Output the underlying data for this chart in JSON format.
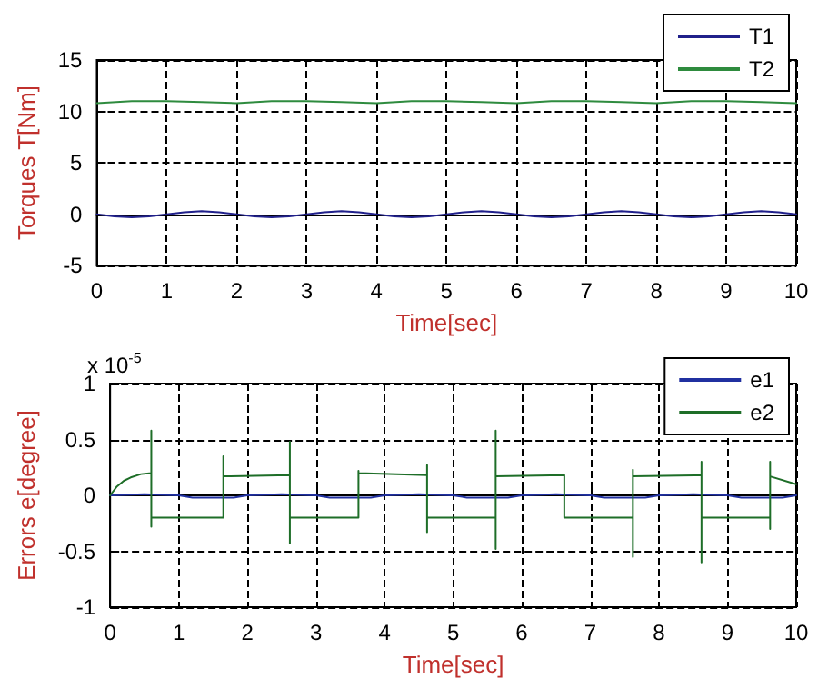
{
  "chart_data": [
    {
      "type": "line",
      "xlabel": "Time[sec]",
      "ylabel": "Torques T[Nm]",
      "xlim": [
        0,
        10
      ],
      "ylim": [
        -5,
        15
      ],
      "xticks": [
        0,
        1,
        2,
        3,
        4,
        5,
        6,
        7,
        8,
        9,
        10
      ],
      "yticks": [
        -5,
        0,
        5,
        10,
        15
      ],
      "grid": true,
      "legend": "top right",
      "marker": "none",
      "line_style": "solid",
      "series": [
        {
          "name": "T1",
          "color": "#20208a",
          "x": [
            0,
            0.25,
            0.5,
            0.75,
            1,
            1.25,
            1.5,
            1.75,
            2,
            2.25,
            2.5,
            2.75,
            3,
            3.25,
            3.5,
            3.75,
            4,
            4.25,
            4.5,
            4.75,
            5,
            5.25,
            5.5,
            5.75,
            6,
            6.25,
            6.5,
            6.75,
            7,
            7.25,
            7.5,
            7.75,
            8,
            8.25,
            8.5,
            8.75,
            9,
            9.25,
            9.5,
            9.75,
            10
          ],
          "values": [
            0,
            -0.2,
            -0.3,
            -0.2,
            0,
            0.2,
            0.3,
            0.2,
            0,
            -0.2,
            -0.3,
            -0.2,
            0,
            0.2,
            0.3,
            0.2,
            0,
            -0.2,
            -0.3,
            -0.2,
            0,
            0.2,
            0.3,
            0.2,
            0,
            -0.2,
            -0.3,
            -0.2,
            0,
            0.2,
            0.3,
            0.2,
            0,
            -0.2,
            -0.3,
            -0.2,
            0,
            0.2,
            0.3,
            0.2,
            0
          ]
        },
        {
          "name": "T2",
          "color": "#2e8b3e",
          "x": [
            0,
            0.5,
            1,
            1.5,
            2,
            2.5,
            3,
            3.5,
            4,
            4.5,
            5,
            5.5,
            6,
            6.5,
            7,
            7.5,
            8,
            8.5,
            9,
            9.5,
            10
          ],
          "values": [
            10.8,
            11,
            11,
            10.9,
            10.8,
            11,
            11,
            10.9,
            10.8,
            11,
            11,
            10.9,
            10.8,
            11,
            11,
            10.9,
            10.8,
            11,
            11,
            10.9,
            10.8
          ]
        }
      ]
    },
    {
      "type": "line",
      "xlabel": "Time[sec]",
      "ylabel": "Errors e[degree]",
      "annotations": [
        "x 10$^{-5}$"
      ],
      "xlim": [
        0,
        10
      ],
      "ylim": [
        -1,
        1
      ],
      "xticks": [
        0,
        1,
        2,
        3,
        4,
        5,
        6,
        7,
        8,
        9,
        10
      ],
      "yticks": [
        -1,
        -0.5,
        0,
        0.5,
        1
      ],
      "grid": true,
      "legend": "top right",
      "marker": "none",
      "line_style": "solid",
      "series": [
        {
          "name": "e1",
          "color": "#2030a0",
          "x": [
            0,
            0.5,
            1,
            1.2,
            1.5,
            1.8,
            2,
            2.5,
            3,
            3.2,
            3.5,
            3.8,
            4,
            4.5,
            5,
            5.2,
            5.5,
            5.8,
            6,
            6.5,
            7,
            7.2,
            7.5,
            7.8,
            8,
            8.5,
            9,
            9.2,
            9.5,
            9.8,
            10
          ],
          "values": [
            0,
            0.01,
            0,
            -0.02,
            -0.02,
            -0.02,
            0,
            0.01,
            0,
            -0.02,
            -0.02,
            -0.02,
            0,
            0.01,
            0,
            -0.02,
            -0.02,
            -0.02,
            0,
            0.01,
            0,
            -0.02,
            -0.02,
            -0.02,
            0,
            0.01,
            0,
            -0.02,
            -0.02,
            -0.02,
            0
          ]
        },
        {
          "name": "e2",
          "color": "#1e6e28",
          "x": [
            0,
            0.1,
            0.2,
            0.3,
            0.45,
            0.6,
            0.6,
            0.6,
            0.6,
            1.65,
            1.65,
            1.65,
            2.62,
            2.62,
            2.62,
            2.62,
            3.62,
            3.62,
            3.62,
            4.62,
            4.62,
            4.62,
            4.62,
            5.62,
            5.62,
            5.62,
            5.62,
            6.62,
            6.62,
            6.62,
            7.62,
            7.62,
            7.62,
            7.62,
            8.62,
            8.62,
            8.62,
            8.62,
            9.62,
            9.62,
            9.62,
            9.62,
            10
          ],
          "values": [
            0,
            0.08,
            0.13,
            0.16,
            0.19,
            0.2,
            0.58,
            -0.28,
            -0.2,
            -0.2,
            0.35,
            0.17,
            0.18,
            0.48,
            -0.43,
            -0.2,
            -0.2,
            0.22,
            0.2,
            0.18,
            0.27,
            -0.33,
            -0.2,
            -0.2,
            -0.48,
            0.58,
            0.17,
            0.18,
            0,
            -0.2,
            -0.2,
            -0.55,
            0.23,
            0.17,
            0.18,
            0.3,
            -0.6,
            -0.2,
            -0.2,
            -0.3,
            0.3,
            0.17,
            0.1
          ]
        }
      ]
    }
  ]
}
